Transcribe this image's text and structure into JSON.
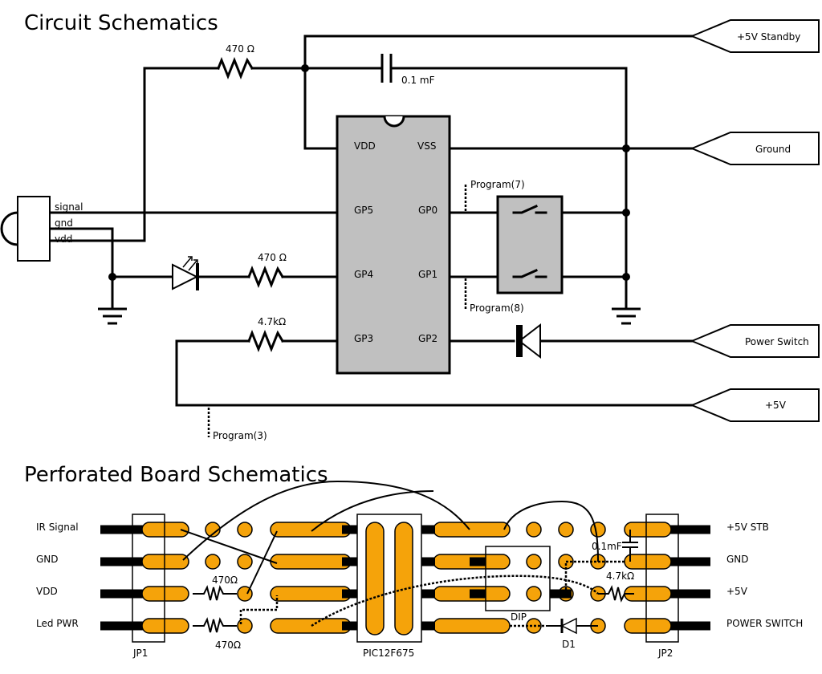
{
  "titles": {
    "circuit": "Circuit Schematics",
    "board": "Perforated Board Schematics"
  },
  "circuit": {
    "ic_pins": {
      "vdd": "VDD",
      "vss": "VSS",
      "gp5": "GP5",
      "gp0": "GP0",
      "gp4": "GP4",
      "gp1": "GP1",
      "gp3": "GP3",
      "gp2": "GP2"
    },
    "resistor_top": "470 Ω",
    "resistor_led": "470 Ω",
    "resistor_gp3": "4.7kΩ",
    "capacitor": "0.1 mF",
    "ir_sensor_pins": [
      "signal",
      "gnd",
      "vdd"
    ],
    "program_labels": [
      "Program(7)",
      "Program(8)",
      "Program(3)"
    ],
    "connectors": [
      "+5V Standby",
      "Ground",
      "Power Switch",
      "+5V"
    ]
  },
  "board": {
    "left_labels": [
      "IR Signal",
      "GND",
      "VDD",
      "Led PWR"
    ],
    "right_labels": [
      "+5V STB",
      "GND",
      "+5V",
      "POWER SWITCH"
    ],
    "jp1": "JP1",
    "jp2": "JP2",
    "ic": "PIC12F675",
    "dip": "DIP",
    "diode": "D1",
    "r_vdd": "470Ω",
    "r_led": "470Ω",
    "r_right": "4.7kΩ",
    "cap": "0.1mF"
  },
  "colors": {
    "ic_fill": "#c0c0c0",
    "pad": "#f5a30a",
    "wire": "#000000"
  }
}
